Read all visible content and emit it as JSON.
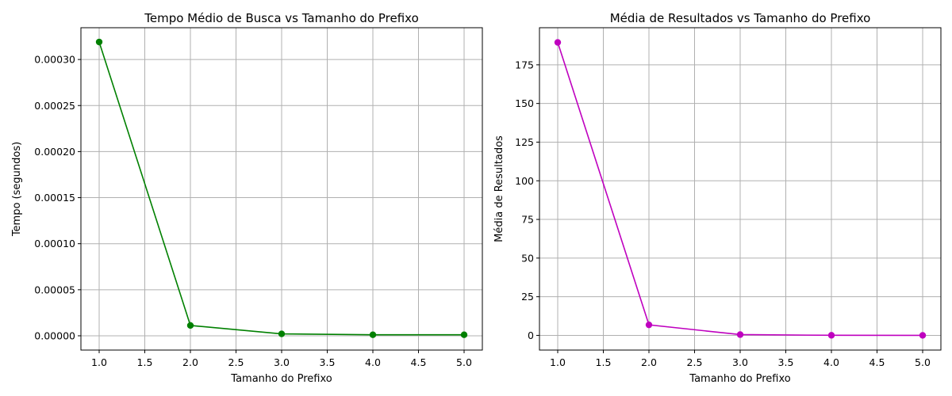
{
  "chart_data": [
    {
      "type": "line",
      "title": "Tempo Médio de Busca vs Tamanho do Prefixo",
      "xlabel": "Tamanho do Prefixo",
      "ylabel": "Tempo (segundos)",
      "x": [
        1.0,
        2.0,
        3.0,
        4.0,
        5.0
      ],
      "series": [
        {
          "values": [
            0.000319,
            1.12e-05,
            2.1e-06,
            1.1e-06,
            1.1e-06
          ],
          "color": "#008000",
          "marker": "circle"
        }
      ],
      "xlim": [
        0.8,
        5.2
      ],
      "ylim": [
        -1.55e-05,
        0.0003345
      ],
      "xticks": [
        1.0,
        1.5,
        2.0,
        2.5,
        3.0,
        3.5,
        4.0,
        4.5,
        5.0
      ],
      "xtick_labels": [
        "1.0",
        "1.5",
        "2.0",
        "2.5",
        "3.0",
        "3.5",
        "4.0",
        "4.5",
        "5.0"
      ],
      "yticks": [
        0,
        5e-05,
        0.0001,
        0.00015,
        0.0002,
        0.00025,
        0.0003
      ],
      "ytick_labels": [
        "0.00000",
        "0.00005",
        "0.00010",
        "0.00015",
        "0.00020",
        "0.00025",
        "0.00030"
      ],
      "grid": true
    },
    {
      "type": "line",
      "title": "Média de Resultados vs Tamanho do Prefixo",
      "xlabel": "Tamanho do Prefixo",
      "ylabel": "Média de Resultados",
      "x": [
        1.0,
        2.0,
        3.0,
        4.0,
        5.0
      ],
      "series": [
        {
          "values": [
            189.5,
            6.8,
            0.5,
            0.05,
            0.0
          ],
          "color": "#bf00bf",
          "marker": "circle"
        }
      ],
      "xlim": [
        0.8,
        5.2
      ],
      "ylim": [
        -9.5,
        199.0
      ],
      "xticks": [
        1.0,
        1.5,
        2.0,
        2.5,
        3.0,
        3.5,
        4.0,
        4.5,
        5.0
      ],
      "xtick_labels": [
        "1.0",
        "1.5",
        "2.0",
        "2.5",
        "3.0",
        "3.5",
        "4.0",
        "4.5",
        "5.0"
      ],
      "yticks": [
        0,
        25,
        50,
        75,
        100,
        125,
        150,
        175
      ],
      "ytick_labels": [
        "0",
        "25",
        "50",
        "75",
        "100",
        "125",
        "150",
        "175"
      ],
      "grid": true
    }
  ]
}
